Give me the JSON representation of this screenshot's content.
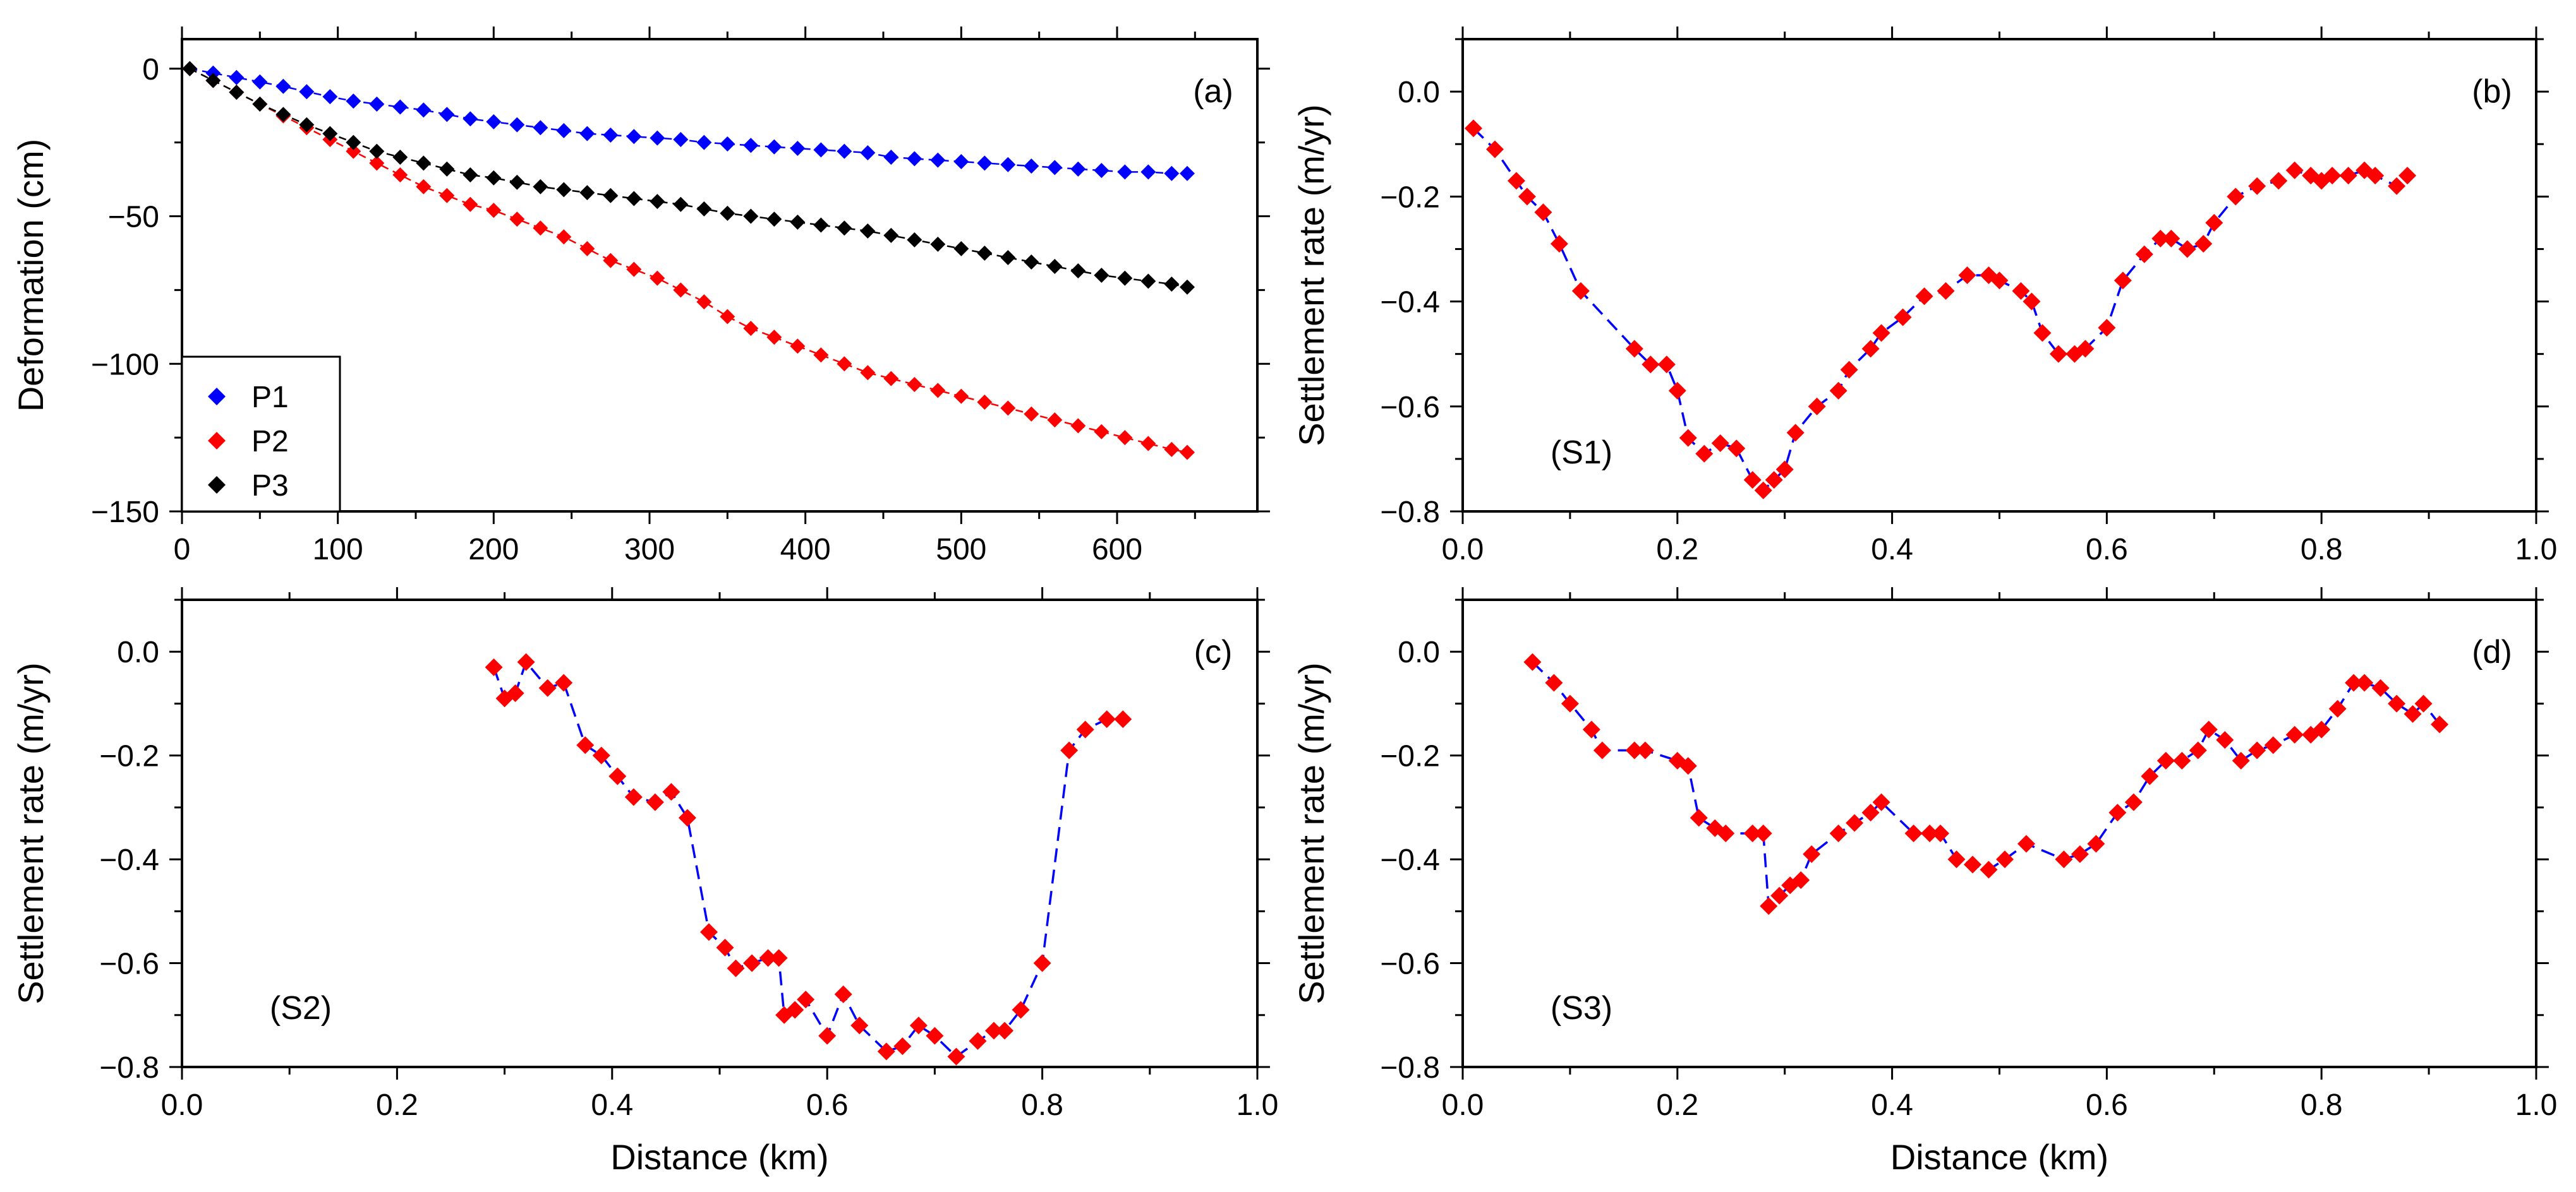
{
  "chart_data": [
    {
      "type": "scatter",
      "panel_id": "a",
      "panel_label": "(a)",
      "xlabel": "",
      "ylabel": "Deformation (cm)",
      "xlim": [
        0,
        690
      ],
      "ylim": [
        -150,
        10
      ],
      "xticks": [
        0,
        100,
        200,
        300,
        400,
        500,
        600
      ],
      "xtick_labels": [
        "0",
        "100",
        "200",
        "300",
        "400",
        "500",
        "600"
      ],
      "yticks": [
        0,
        -50,
        -100,
        -150
      ],
      "ytick_labels": [
        "0",
        "−50",
        "−100",
        "−150"
      ],
      "legend": {
        "position": "bottom-left",
        "entries": [
          "P1",
          "P2",
          "P3"
        ]
      },
      "x": [
        5,
        20,
        35,
        50,
        65,
        80,
        95,
        110,
        125,
        140,
        155,
        170,
        185,
        200,
        215,
        230,
        245,
        260,
        275,
        290,
        305,
        320,
        335,
        350,
        365,
        380,
        395,
        410,
        425,
        440,
        455,
        470,
        485,
        500,
        515,
        530,
        545,
        560,
        575,
        590,
        605,
        620,
        635,
        645
      ],
      "series": [
        {
          "name": "P1",
          "color": "#0000ff",
          "values": [
            0,
            -1.5,
            -3,
            -4.5,
            -6,
            -7.8,
            -9.5,
            -11,
            -12,
            -13,
            -14,
            -15.5,
            -17,
            -18,
            -19,
            -20,
            -21,
            -22,
            -22.5,
            -23,
            -23.5,
            -24,
            -25,
            -25.5,
            -26,
            -26.5,
            -27,
            -27.5,
            -28,
            -28.5,
            -30,
            -30.5,
            -31,
            -31.5,
            -32,
            -32.5,
            -33,
            -33.5,
            -34,
            -34.5,
            -35,
            -35,
            -35.5,
            -35.5
          ]
        },
        {
          "name": "P2",
          "color": "#ff0000",
          "values": [
            0,
            -4,
            -8,
            -12,
            -16,
            -20,
            -24,
            -28,
            -32,
            -36,
            -40,
            -43,
            -46,
            -48,
            -51,
            -54,
            -57,
            -61,
            -65,
            -68,
            -71,
            -75,
            -79,
            -84,
            -88,
            -91,
            -94,
            -97,
            -100,
            -103,
            -105,
            -107,
            -109,
            -111,
            -113,
            -115,
            -117,
            -119,
            -121,
            -123,
            -125,
            -127,
            -129,
            -130
          ]
        },
        {
          "name": "P3",
          "color": "#000000",
          "values": [
            0,
            -4,
            -8,
            -12,
            -15.5,
            -19,
            -22,
            -25,
            -28,
            -30,
            -32,
            -34,
            -36,
            -37,
            -38.5,
            -40,
            -41,
            -42,
            -43,
            -44,
            -45,
            -46,
            -47.5,
            -49,
            -50,
            -51,
            -52,
            -53,
            -54,
            -55,
            -56.5,
            -58,
            -59.5,
            -61,
            -62.5,
            -64,
            -65.5,
            -67,
            -68.5,
            -70,
            -71,
            -72,
            -73,
            -74
          ]
        }
      ]
    },
    {
      "type": "scatter",
      "panel_id": "b",
      "panel_label": "(b)",
      "profile_label": "(S1)",
      "xlabel": "",
      "ylabel": "Settlement rate (m/yr)",
      "xlim": [
        0,
        1
      ],
      "ylim": [
        -0.8,
        0.1
      ],
      "xticks": [
        0,
        0.2,
        0.4,
        0.6,
        0.8,
        1.0
      ],
      "xtick_labels": [
        "0.0",
        "0.2",
        "0.4",
        "0.6",
        "0.8",
        "1.0"
      ],
      "yticks": [
        0,
        -0.2,
        -0.4,
        -0.6,
        -0.8
      ],
      "ytick_labels": [
        "0.0",
        "−0.2",
        "−0.4",
        "−0.6",
        "−0.8"
      ],
      "line_color": "#0000ff",
      "marker_color": "#ff0000",
      "x": [
        0.01,
        0.03,
        0.05,
        0.06,
        0.075,
        0.09,
        0.11,
        0.16,
        0.175,
        0.19,
        0.2,
        0.21,
        0.225,
        0.24,
        0.255,
        0.27,
        0.28,
        0.29,
        0.3,
        0.31,
        0.33,
        0.35,
        0.36,
        0.38,
        0.39,
        0.41,
        0.43,
        0.45,
        0.47,
        0.49,
        0.5,
        0.52,
        0.53,
        0.54,
        0.555,
        0.57,
        0.58,
        0.6,
        0.615,
        0.635,
        0.65,
        0.66,
        0.675,
        0.69,
        0.7,
        0.72,
        0.74,
        0.76,
        0.775,
        0.79,
        0.8,
        0.81,
        0.825,
        0.84,
        0.85,
        0.87,
        0.88
      ],
      "values": [
        -0.07,
        -0.11,
        -0.17,
        -0.2,
        -0.23,
        -0.29,
        -0.38,
        -0.49,
        -0.52,
        -0.52,
        -0.57,
        -0.66,
        -0.69,
        -0.67,
        -0.68,
        -0.74,
        -0.76,
        -0.74,
        -0.72,
        -0.65,
        -0.6,
        -0.57,
        -0.53,
        -0.49,
        -0.46,
        -0.43,
        -0.39,
        -0.38,
        -0.35,
        -0.35,
        -0.36,
        -0.38,
        -0.4,
        -0.46,
        -0.5,
        -0.5,
        -0.49,
        -0.45,
        -0.36,
        -0.31,
        -0.28,
        -0.28,
        -0.3,
        -0.29,
        -0.25,
        -0.2,
        -0.18,
        -0.17,
        -0.15,
        -0.16,
        -0.17,
        -0.16,
        -0.16,
        -0.15,
        -0.16,
        -0.18,
        -0.16
      ]
    },
    {
      "type": "scatter",
      "panel_id": "c",
      "panel_label": "(c)",
      "profile_label": "(S2)",
      "xlabel": "Distance (km)",
      "ylabel": "Settlement rate (m/yr)",
      "xlim": [
        0,
        1
      ],
      "ylim": [
        -0.8,
        0.1
      ],
      "xticks": [
        0,
        0.2,
        0.4,
        0.6,
        0.8,
        1.0
      ],
      "xtick_labels": [
        "0.0",
        "0.2",
        "0.4",
        "0.6",
        "0.8",
        "1.0"
      ],
      "yticks": [
        0,
        -0.2,
        -0.4,
        -0.6,
        -0.8
      ],
      "ytick_labels": [
        "0.0",
        "−0.2",
        "−0.4",
        "−0.6",
        "−0.8"
      ],
      "line_color": "#0000ff",
      "marker_color": "#ff0000",
      "x": [
        0.29,
        0.3,
        0.31,
        0.32,
        0.34,
        0.355,
        0.375,
        0.39,
        0.405,
        0.42,
        0.44,
        0.455,
        0.47,
        0.49,
        0.505,
        0.515,
        0.53,
        0.545,
        0.555,
        0.56,
        0.57,
        0.58,
        0.6,
        0.615,
        0.63,
        0.655,
        0.67,
        0.685,
        0.7,
        0.72,
        0.74,
        0.755,
        0.765,
        0.78,
        0.8,
        0.825,
        0.84,
        0.86,
        0.875
      ],
      "values": [
        -0.03,
        -0.09,
        -0.08,
        -0.02,
        -0.07,
        -0.06,
        -0.18,
        -0.2,
        -0.24,
        -0.28,
        -0.29,
        -0.27,
        -0.32,
        -0.54,
        -0.57,
        -0.61,
        -0.6,
        -0.59,
        -0.59,
        -0.7,
        -0.69,
        -0.67,
        -0.74,
        -0.66,
        -0.72,
        -0.77,
        -0.76,
        -0.72,
        -0.74,
        -0.78,
        -0.75,
        -0.73,
        -0.73,
        -0.69,
        -0.6,
        -0.19,
        -0.15,
        -0.13,
        -0.13
      ]
    },
    {
      "type": "scatter",
      "panel_id": "d",
      "panel_label": "(d)",
      "profile_label": "(S3)",
      "xlabel": "Distance (km)",
      "ylabel": "Settlement rate (m/yr)",
      "xlim": [
        0,
        1
      ],
      "ylim": [
        -0.8,
        0.1
      ],
      "xticks": [
        0,
        0.2,
        0.4,
        0.6,
        0.8,
        1.0
      ],
      "xtick_labels": [
        "0.0",
        "0.2",
        "0.4",
        "0.6",
        "0.8",
        "1.0"
      ],
      "yticks": [
        0,
        -0.2,
        -0.4,
        -0.6,
        -0.8
      ],
      "ytick_labels": [
        "0.0",
        "−0.2",
        "−0.4",
        "−0.6",
        "−0.8"
      ],
      "line_color": "#0000ff",
      "marker_color": "#ff0000",
      "x": [
        0.065,
        0.085,
        0.1,
        0.12,
        0.13,
        0.16,
        0.17,
        0.2,
        0.21,
        0.22,
        0.235,
        0.245,
        0.27,
        0.28,
        0.285,
        0.295,
        0.305,
        0.315,
        0.325,
        0.35,
        0.365,
        0.38,
        0.39,
        0.42,
        0.435,
        0.445,
        0.46,
        0.475,
        0.49,
        0.505,
        0.525,
        0.56,
        0.575,
        0.59,
        0.61,
        0.625,
        0.64,
        0.655,
        0.67,
        0.685,
        0.695,
        0.71,
        0.725,
        0.74,
        0.755,
        0.775,
        0.79,
        0.8,
        0.815,
        0.83,
        0.84,
        0.855,
        0.87,
        0.885,
        0.895,
        0.91
      ],
      "values": [
        -0.02,
        -0.06,
        -0.1,
        -0.15,
        -0.19,
        -0.19,
        -0.19,
        -0.21,
        -0.22,
        -0.32,
        -0.34,
        -0.35,
        -0.35,
        -0.35,
        -0.49,
        -0.47,
        -0.45,
        -0.44,
        -0.39,
        -0.35,
        -0.33,
        -0.31,
        -0.29,
        -0.35,
        -0.35,
        -0.35,
        -0.4,
        -0.41,
        -0.42,
        -0.4,
        -0.37,
        -0.4,
        -0.39,
        -0.37,
        -0.31,
        -0.29,
        -0.24,
        -0.21,
        -0.21,
        -0.19,
        -0.15,
        -0.17,
        -0.21,
        -0.19,
        -0.18,
        -0.16,
        -0.16,
        -0.15,
        -0.11,
        -0.06,
        -0.06,
        -0.07,
        -0.1,
        -0.12,
        -0.1,
        -0.14
      ]
    }
  ]
}
